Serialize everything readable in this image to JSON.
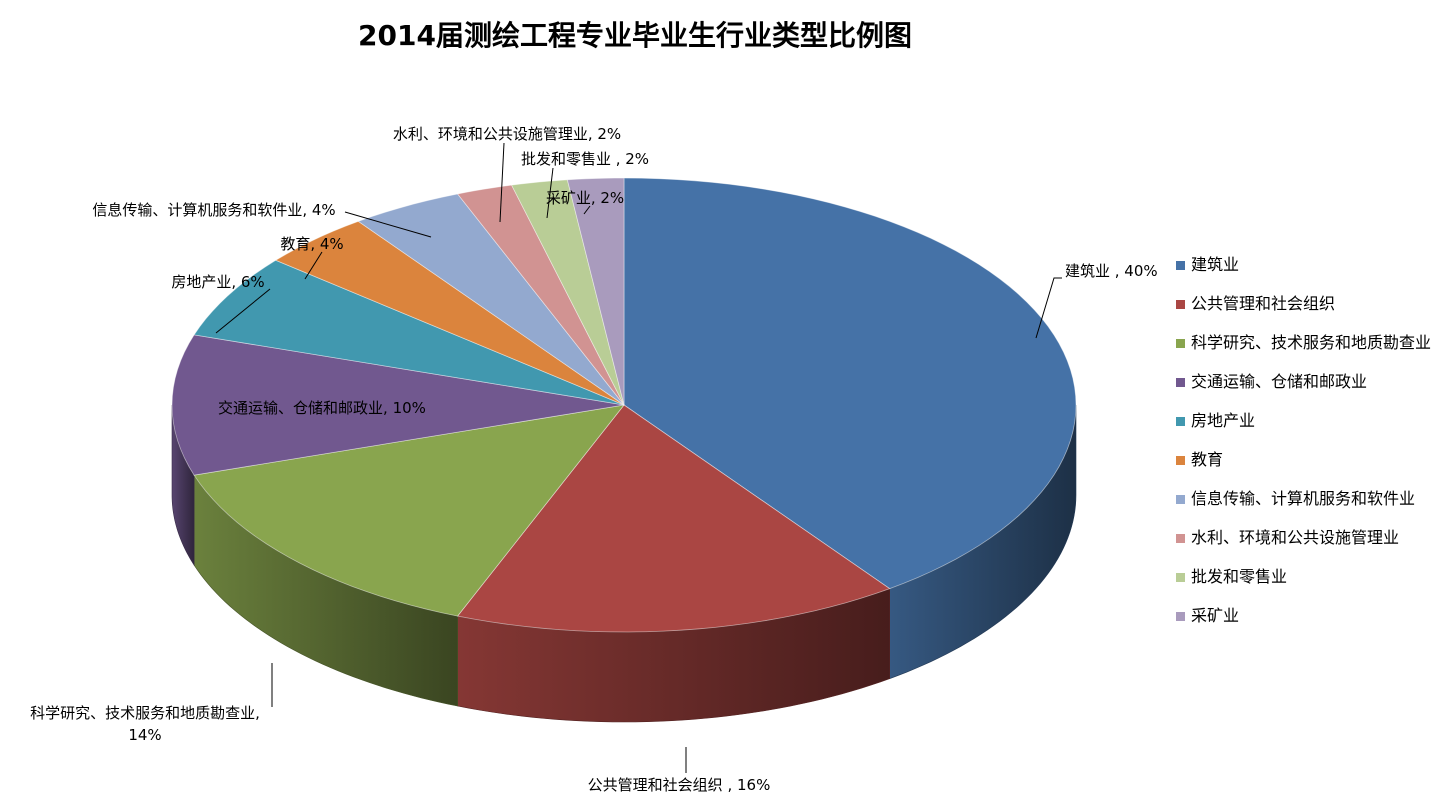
{
  "chart_data": {
    "type": "pie",
    "title": "2014届测绘工程专业毕业生行业类型比例图",
    "slices": [
      {
        "name": "建筑业",
        "value": 40,
        "label": "建筑业 , 40%",
        "color": "#4572A7"
      },
      {
        "name": "公共管理和社会组织",
        "value": 16,
        "label": "公共管理和社会组织 , 16%",
        "color": "#AA4643"
      },
      {
        "name": "科学研究、技术服务和地质勘查业",
        "value": 14,
        "label": "科学研究、技术服务和地质勘查业,",
        "label2": "14%",
        "color": "#89A54E"
      },
      {
        "name": "交通运输、仓储和邮政业",
        "value": 10,
        "label": "交通运输、仓储和邮政业, 10%",
        "color": "#71588F"
      },
      {
        "name": "房地产业",
        "value": 6,
        "label": "房地产业, 6%",
        "color": "#4198AF"
      },
      {
        "name": "教育",
        "value": 4,
        "label": "教育, 4%",
        "color": "#DB843D"
      },
      {
        "name": "信息传输、计算机服务和软件业",
        "value": 4,
        "label": "信息传输、计算机服务和软件业, 4%",
        "color": "#93A9CF"
      },
      {
        "name": "水利、环境和公共设施管理业",
        "value": 2,
        "label": "水利、环境和公共设施管理业, 2%",
        "color": "#D19392"
      },
      {
        "name": "批发和零售业",
        "value": 2,
        "label": "批发和零售业 , 2%",
        "color": "#B9CD96"
      },
      {
        "name": "采矿业",
        "value": 2,
        "label": "采矿业, 2%",
        "color": "#A99BBD"
      }
    ],
    "legend_position": "right"
  }
}
